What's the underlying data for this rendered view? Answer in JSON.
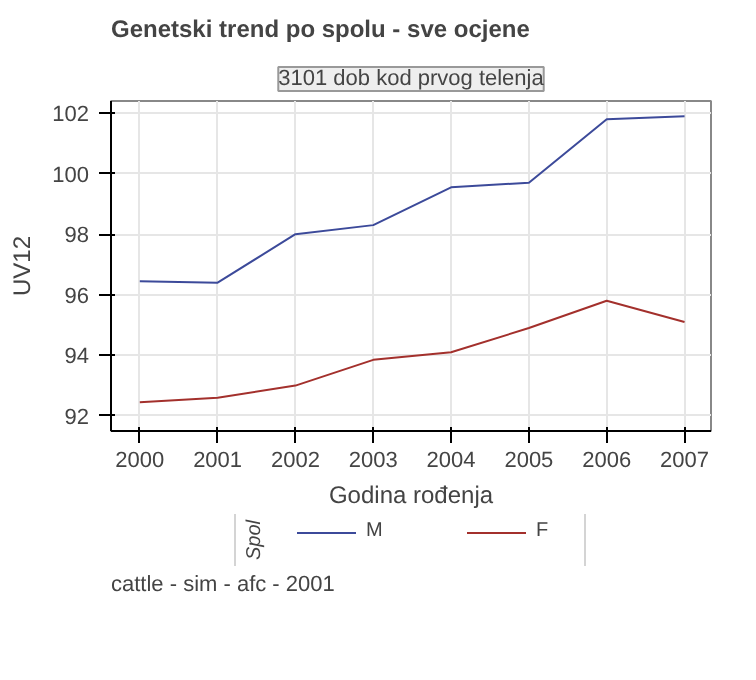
{
  "chart_data": {
    "type": "line",
    "title": "Genetski trend po spolu - sve ocjene",
    "subtitle": "3101 dob kod prvog telenja",
    "xlabel": "Godina rođenja",
    "ylabel": "UV12",
    "legend_title": "Spol",
    "x": [
      2000,
      2001,
      2002,
      2003,
      2004,
      2005,
      2006,
      2007
    ],
    "series": [
      {
        "name": "M",
        "color": "#3c4a9a",
        "values": [
          96.45,
          96.4,
          98.0,
          98.3,
          99.55,
          99.7,
          101.8,
          101.9
        ]
      },
      {
        "name": "F",
        "color": "#a3302c",
        "values": [
          92.45,
          92.6,
          93.0,
          93.85,
          94.1,
          94.9,
          95.8,
          95.1
        ]
      }
    ],
    "xlim": [
      1999.63,
      2007.34
    ],
    "ylim": [
      91.5,
      102.4
    ],
    "xticks": [
      2000,
      2001,
      2002,
      2003,
      2004,
      2005,
      2006,
      2007
    ],
    "yticks": [
      92,
      94,
      96,
      98,
      100,
      102
    ],
    "grid": true,
    "legend": "bottom",
    "marker": "none",
    "line_style": "solid",
    "annotations": [
      "cattle - sim - afc - 2001"
    ]
  }
}
